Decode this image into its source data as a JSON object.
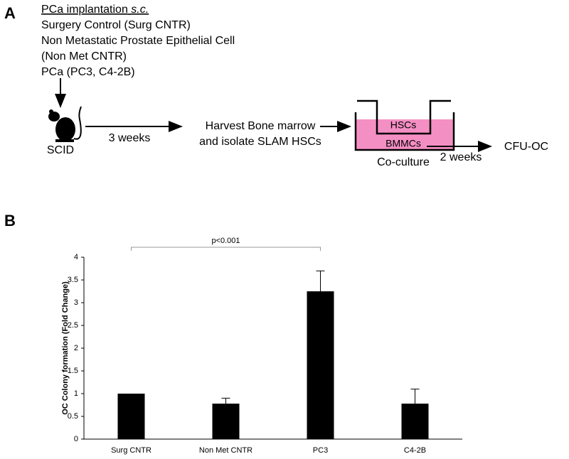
{
  "panel_a": {
    "label": "A",
    "heading": "PCa implantation",
    "heading_emphasis": "s.c.",
    "groups": [
      "Surgery Control (Surg CNTR)",
      "Non Metastatic Prostate Epithelial Cell",
      "(Non Met CNTR)",
      "PCa (PC3, C4-2B)"
    ],
    "animal": "SCID",
    "step_1_time": "3 weeks",
    "step_2": [
      "Harvest Bone marrow",
      "and isolate SLAM HSCs"
    ],
    "insert_cells": "HSCs",
    "well_cells": "BMMCs",
    "culture": "Co-culture",
    "step_3_time": "2 weeks",
    "readout": "CFU-OC"
  },
  "chart_data": {
    "type": "bar",
    "panel_label": "B",
    "y_label": "OC Colony formation (Fold Change)",
    "categories": [
      "Surg CNTR",
      "Non Met CNTR",
      "PC3",
      "C4-2B"
    ],
    "values": [
      1,
      0.78,
      3.25,
      0.78
    ],
    "errors": [
      null,
      0.12,
      0.45,
      0.32
    ],
    "color": "#000000",
    "ylim": [
      0,
      4
    ],
    "yticks": [
      0,
      0.5,
      1,
      1.5,
      2,
      2.5,
      3,
      3.5,
      4
    ],
    "grid": false,
    "annotation": "p<0.001"
  }
}
